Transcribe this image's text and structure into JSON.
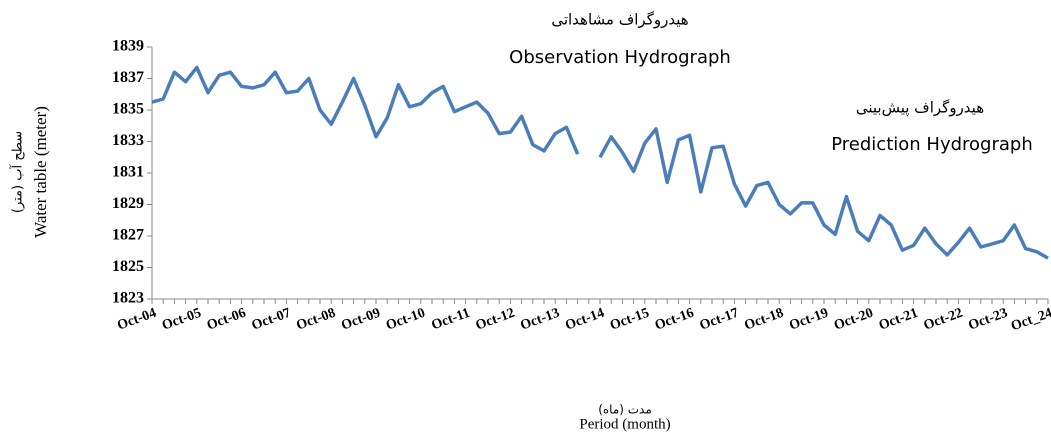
{
  "chart_data": {
    "type": "line",
    "categories": [
      "Oct-04",
      null,
      null,
      null,
      "Oct-05",
      null,
      null,
      null,
      "Oct-06",
      null,
      null,
      null,
      "Oct-07",
      null,
      null,
      null,
      "Oct-08",
      null,
      null,
      null,
      "Oct-09",
      null,
      null,
      null,
      "Oct-10",
      null,
      null,
      null,
      "Oct-11",
      null,
      null,
      null,
      "Oct-12",
      null,
      null,
      null,
      "Oct-13",
      null,
      null,
      null,
      "Oct-14",
      null,
      null,
      null,
      "Oct-15",
      null,
      null,
      null,
      "Oct-16",
      null,
      null,
      null,
      "Oct-17",
      null,
      null,
      null,
      "Oct-18",
      null,
      null,
      null,
      "Oct-19",
      null,
      null,
      null,
      "Oct-20",
      null,
      null,
      null,
      "Oct-21",
      null,
      null,
      null,
      "Oct-22",
      null,
      null,
      null,
      "Oct-23",
      null,
      null,
      null,
      "Oct_24"
    ],
    "values": [
      1835.5,
      1835.7,
      1837.4,
      1836.8,
      1837.7,
      1836.1,
      1837.2,
      1837.4,
      1836.5,
      1836.4,
      1836.6,
      1837.4,
      1836.1,
      1836.2,
      1837.0,
      1835.0,
      1834.1,
      1835.5,
      1837.0,
      1835.3,
      1833.3,
      1834.5,
      1836.6,
      1835.2,
      1835.4,
      1836.1,
      1836.5,
      1834.9,
      1835.2,
      1835.5,
      1834.8,
      1833.5,
      1833.6,
      1834.6,
      1832.8,
      1832.4,
      1833.5,
      1833.9,
      1832.2,
      null,
      1832.0,
      1833.3,
      1832.3,
      1831.1,
      1832.9,
      1833.8,
      1830.4,
      1833.1,
      1833.4,
      1829.8,
      1832.6,
      1832.7,
      1830.3,
      1828.9,
      1830.2,
      1830.4,
      1829.0,
      1828.4,
      1829.1,
      1829.1,
      1827.7,
      1827.1,
      1829.5,
      1827.3,
      1826.7,
      1828.3,
      1827.7,
      1826.1,
      1826.4,
      1827.5,
      1826.5,
      1825.8,
      1826.6,
      1827.5,
      1826.3,
      1826.5,
      1826.7,
      1827.7,
      1826.2,
      1826.0,
      1825.6
    ],
    "color": "#4a7ebb",
    "ylim": [
      1823,
      1839
    ],
    "yticks": [
      1823,
      1825,
      1827,
      1829,
      1831,
      1833,
      1835,
      1837,
      1839
    ],
    "x_label": "Period (month)",
    "x_label_fa": "مدت (ماه)",
    "y_label": "Water table (meter)",
    "y_label_fa": "سطح آب (متر)",
    "annotations": [
      "هیدروگراف مشاهداتی",
      "Observation Hydrograph",
      "هیدروگراف پیش‌بینی",
      "Prediction Hydrograph"
    ]
  }
}
